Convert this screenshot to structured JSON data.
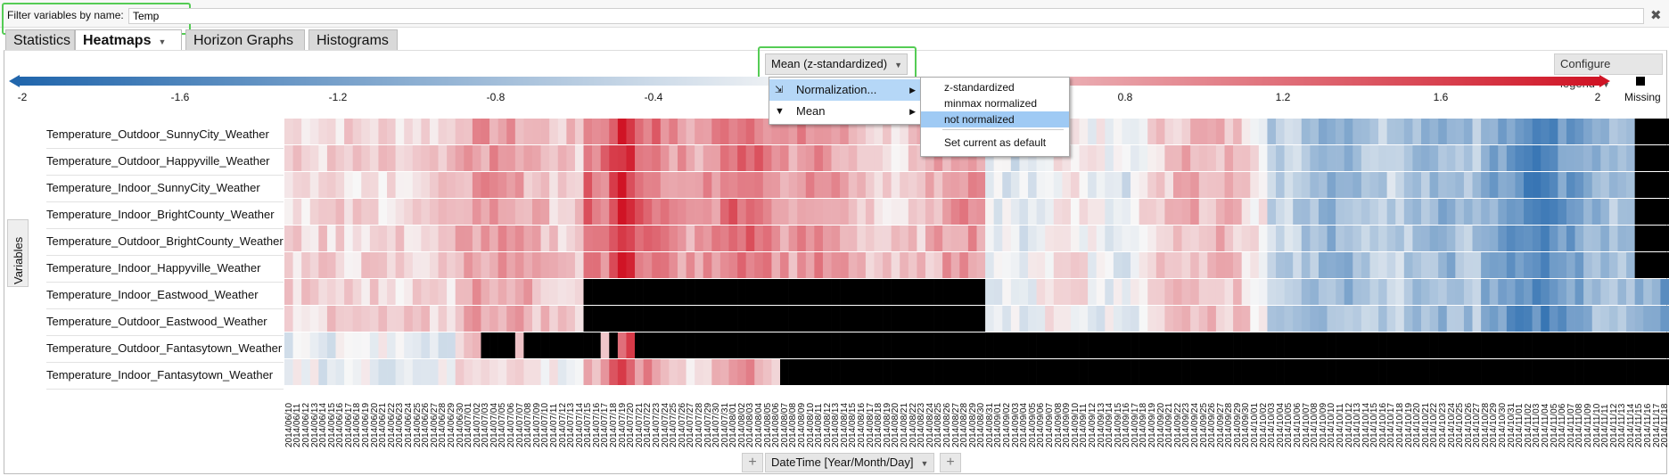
{
  "filter": {
    "label": "Filter variables by name:",
    "value": "Temp"
  },
  "tabs": [
    "Statistics",
    "Heatmaps",
    "Horizon Graphs",
    "Histograms"
  ],
  "active_tab_caret": "▼",
  "aggregation": {
    "selected": "Mean (z-standardized)"
  },
  "configure_legend": "Configure legend",
  "legend": {
    "ticks": [
      "-2",
      "-1.6",
      "-1.2",
      "-0.8",
      "-0.4",
      "0.8",
      "1.2",
      "1.6",
      "2"
    ],
    "missing_label": "Missing",
    "colors": {
      "low": "#2166ac",
      "mid": "#f7f7f7",
      "high": "#d01425",
      "missing": "#000000"
    }
  },
  "side_panel": "Variables",
  "variables": [
    "Temperature_Outdoor_SunnyCity_Weather",
    "Temperature_Outdoor_Happyville_Weather",
    "Temperature_Indoor_SunnyCity_Weather",
    "Temperature_Indoor_BrightCounty_Weather",
    "Temperature_Outdoor_BrightCounty_Weather",
    "Temperature_Indoor_Happyville_Weather",
    "Temperature_Indoor_Eastwood_Weather",
    "Temperature_Outdoor_Eastwood_Weather",
    "Temperature_Outdoor_Fantasytown_Weather",
    "Temperature_Indoor_Fantasytown_Weather"
  ],
  "dates": {
    "first": "2014/06/10",
    "last": "2014/11/18",
    "count": 162
  },
  "missing_ranges": [
    {
      "row": 6,
      "from": "2014/07/15",
      "to": "2014/08/30"
    },
    {
      "row": 7,
      "from": "2014/07/15",
      "to": "2014/08/30"
    },
    {
      "row": 8,
      "from": "2014/07/03",
      "to": "2014/11/18",
      "exceptions": [
        "2014/07/07",
        "2014/07/17",
        "2014/07/19",
        "2014/07/20"
      ]
    },
    {
      "row": 9,
      "from": "2014/08/07",
      "to": "2014/11/18"
    }
  ],
  "dimension": {
    "label": "DateTime [Year/Month/Day]",
    "add_left": "+",
    "add_right": "+"
  },
  "menu": {
    "items": [
      {
        "label": "Normalization...",
        "icon": "⇲"
      },
      {
        "label": "Mean",
        "icon": "▼"
      }
    ],
    "submenu": [
      "z-standardized",
      "minmax normalized",
      "not normalized",
      "Set current as default"
    ]
  }
}
